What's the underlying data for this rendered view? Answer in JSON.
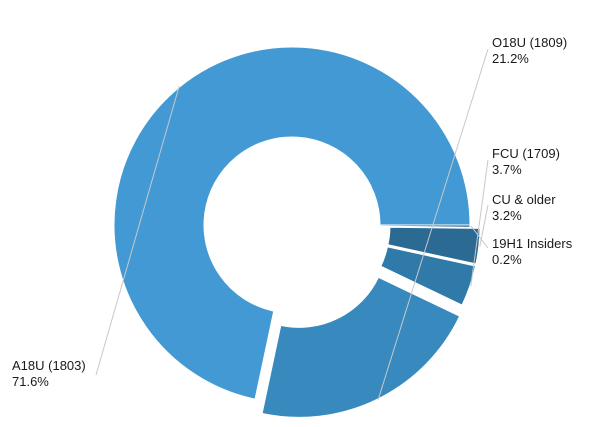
{
  "chart_data": {
    "type": "pie",
    "variant": "donut",
    "exploded": true,
    "slices": [
      {
        "label": "A18U (1803)",
        "value": 71.6,
        "value_text": "71.6%",
        "color": "#4299d4"
      },
      {
        "label": "O18U (1809)",
        "value": 21.2,
        "value_text": "21.2%",
        "color": "#3889be"
      },
      {
        "label": "FCU (1709)",
        "value": 3.7,
        "value_text": "3.7%",
        "color": "#307aa9"
      },
      {
        "label": "CU & older",
        "value": 3.2,
        "value_text": "3.2%",
        "color": "#2a6a93"
      },
      {
        "label": "19H1 Insiders",
        "value": 0.2,
        "value_text": "0.2%",
        "color": "#245b7e"
      }
    ],
    "legend": "none"
  }
}
